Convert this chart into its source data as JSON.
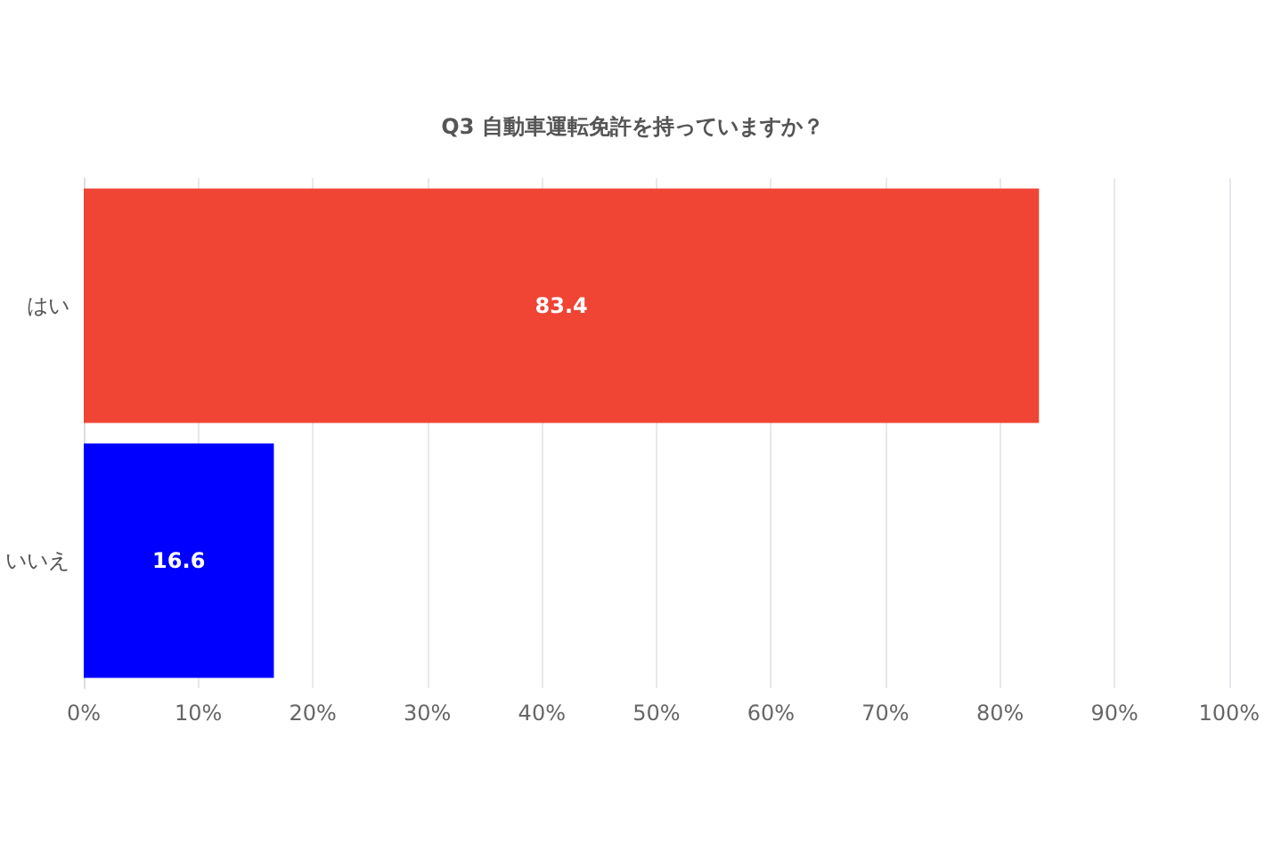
{
  "chart_data": {
    "type": "bar",
    "orientation": "horizontal",
    "title": "Q3 自動車運転免許を持っていますか？",
    "categories": [
      "はい",
      "いいえ"
    ],
    "values": [
      83.4,
      16.6
    ],
    "colors": [
      "#f04435",
      "#0000ff"
    ],
    "xlim": [
      0,
      100
    ],
    "xticks": [
      {
        "value": 0,
        "label": "0%"
      },
      {
        "value": 10,
        "label": "10%"
      },
      {
        "value": 20,
        "label": "20%"
      },
      {
        "value": 30,
        "label": "30%"
      },
      {
        "value": 40,
        "label": "40%"
      },
      {
        "value": 50,
        "label": "50%"
      },
      {
        "value": 60,
        "label": "60%"
      },
      {
        "value": 70,
        "label": "70%"
      },
      {
        "value": 80,
        "label": "80%"
      },
      {
        "value": 90,
        "label": "90%"
      },
      {
        "value": 100,
        "label": "100%"
      }
    ],
    "grid": "x",
    "data_labels": true
  }
}
